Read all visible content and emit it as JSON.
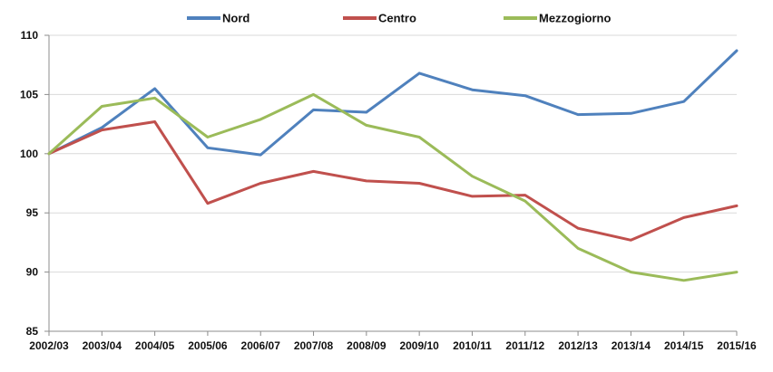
{
  "chart_data": {
    "type": "line",
    "title": "",
    "xlabel": "",
    "ylabel": "",
    "categories": [
      "2002/03",
      "2003/04",
      "2004/05",
      "2005/06",
      "2006/07",
      "2007/08",
      "2008/09",
      "2009/10",
      "2010/11",
      "2011/12",
      "2012/13",
      "2013/14",
      "2014/15",
      "2015/16"
    ],
    "ylim": [
      85,
      110
    ],
    "yticks": [
      85,
      90,
      95,
      100,
      105,
      110
    ],
    "grid": true,
    "legend_position": "top",
    "series": [
      {
        "name": "Nord",
        "color": "#4f81bd",
        "values": [
          100,
          102.2,
          105.5,
          100.5,
          99.9,
          103.7,
          103.5,
          106.8,
          105.4,
          104.9,
          103.3,
          103.4,
          104.4,
          108.7
        ]
      },
      {
        "name": "Centro",
        "color": "#c0504d",
        "values": [
          100,
          102.0,
          102.7,
          95.8,
          97.5,
          98.5,
          97.7,
          97.5,
          96.4,
          96.5,
          93.7,
          92.7,
          94.6,
          95.6
        ]
      },
      {
        "name": "Mezzogiorno",
        "color": "#9bbb59",
        "values": [
          100,
          104.0,
          104.7,
          101.4,
          102.9,
          105.0,
          102.4,
          101.4,
          98.1,
          96.0,
          92.0,
          90.0,
          89.3,
          90.0
        ]
      }
    ]
  }
}
